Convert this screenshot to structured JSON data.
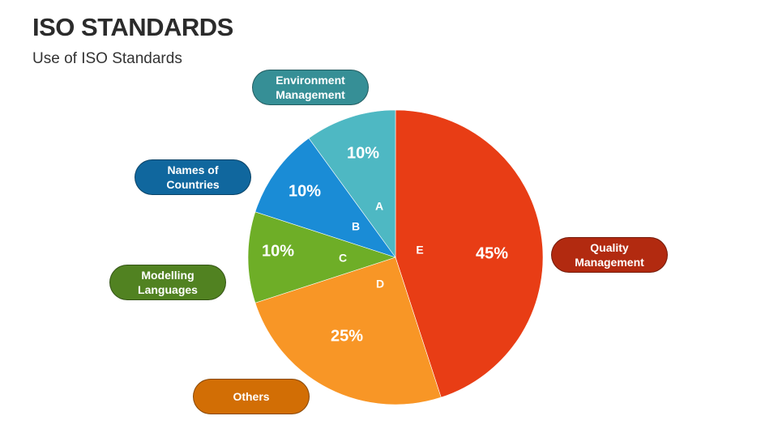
{
  "title": "ISO STANDARDS",
  "subtitle": "Use of ISO Standards",
  "chart_data": {
    "type": "pie",
    "title": "",
    "start": "top",
    "direction": "clockwise",
    "slices": [
      {
        "letter": "E",
        "category": "Quality Management",
        "value": 45,
        "label": "45%",
        "color": "#E83D15",
        "pill_color": "#B22A10"
      },
      {
        "letter": "D",
        "category": "Others",
        "value": 25,
        "label": "25%",
        "color": "#F89626",
        "pill_color": "#D26E05"
      },
      {
        "letter": "C",
        "category": "Modelling Languages",
        "value": 10,
        "label": "10%",
        "color": "#6EAE27",
        "pill_color": "#518221"
      },
      {
        "letter": "B",
        "category": "Names of Countries",
        "value": 10,
        "label": "10%",
        "color": "#1A8CD6",
        "pill_color": "#10679E"
      },
      {
        "letter": "A",
        "category": "Environment Management",
        "value": 10,
        "label": "10%",
        "color": "#4EB8C3",
        "pill_color": "#368F96"
      }
    ]
  }
}
